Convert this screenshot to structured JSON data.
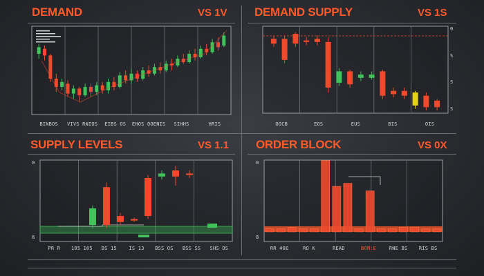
{
  "colors": {
    "accent": "#ff5a2a",
    "red": "#f04a2c",
    "green": "#3fc35a",
    "yellow": "#e4d21c",
    "grid": "#6f737a",
    "frame": "#9a9da3"
  },
  "chart_data": [
    {
      "type": "candlestick",
      "title": "DEMAND",
      "subtitle": "VS 1V",
      "tick_labels": [
        "BINBOS",
        "VIVS RNIOS",
        "EIBS OS",
        "EHOS OOENIS",
        "SIHHS",
        "HRIS"
      ],
      "candles": [
        {
          "o": 70,
          "c": 78,
          "h": 82,
          "l": 64,
          "dir": "up"
        },
        {
          "o": 76,
          "c": 68,
          "h": 80,
          "l": 62,
          "dir": "down"
        },
        {
          "o": 68,
          "c": 40,
          "h": 70,
          "l": 36,
          "dir": "down"
        },
        {
          "o": 40,
          "c": 30,
          "h": 46,
          "l": 24,
          "dir": "down"
        },
        {
          "o": 30,
          "c": 36,
          "h": 40,
          "l": 26,
          "dir": "up"
        },
        {
          "o": 34,
          "c": 22,
          "h": 38,
          "l": 18,
          "dir": "down"
        },
        {
          "o": 22,
          "c": 28,
          "h": 32,
          "l": 16,
          "dir": "up"
        },
        {
          "o": 28,
          "c": 20,
          "h": 30,
          "l": 12,
          "dir": "down"
        },
        {
          "o": 20,
          "c": 30,
          "h": 34,
          "l": 18,
          "dir": "up"
        },
        {
          "o": 30,
          "c": 24,
          "h": 34,
          "l": 18,
          "dir": "down"
        },
        {
          "o": 24,
          "c": 32,
          "h": 36,
          "l": 20,
          "dir": "up"
        },
        {
          "o": 32,
          "c": 26,
          "h": 36,
          "l": 22,
          "dir": "down"
        },
        {
          "o": 26,
          "c": 36,
          "h": 40,
          "l": 22,
          "dir": "up"
        },
        {
          "o": 36,
          "c": 30,
          "h": 42,
          "l": 26,
          "dir": "down"
        },
        {
          "o": 30,
          "c": 44,
          "h": 48,
          "l": 28,
          "dir": "up"
        },
        {
          "o": 44,
          "c": 38,
          "h": 50,
          "l": 34,
          "dir": "down"
        },
        {
          "o": 38,
          "c": 46,
          "h": 52,
          "l": 34,
          "dir": "up"
        },
        {
          "o": 46,
          "c": 40,
          "h": 50,
          "l": 36,
          "dir": "down"
        },
        {
          "o": 40,
          "c": 50,
          "h": 54,
          "l": 38,
          "dir": "up"
        },
        {
          "o": 50,
          "c": 46,
          "h": 56,
          "l": 42,
          "dir": "down"
        },
        {
          "o": 46,
          "c": 54,
          "h": 58,
          "l": 44,
          "dir": "up"
        },
        {
          "o": 54,
          "c": 50,
          "h": 60,
          "l": 46,
          "dir": "down"
        },
        {
          "o": 50,
          "c": 58,
          "h": 62,
          "l": 48,
          "dir": "up"
        },
        {
          "o": 58,
          "c": 56,
          "h": 64,
          "l": 50,
          "dir": "down"
        },
        {
          "o": 56,
          "c": 64,
          "h": 68,
          "l": 54,
          "dir": "up"
        },
        {
          "o": 64,
          "c": 60,
          "h": 70,
          "l": 58,
          "dir": "down"
        },
        {
          "o": 60,
          "c": 70,
          "h": 74,
          "l": 58,
          "dir": "up"
        },
        {
          "o": 70,
          "c": 66,
          "h": 76,
          "l": 62,
          "dir": "down"
        },
        {
          "o": 66,
          "c": 76,
          "h": 80,
          "l": 64,
          "dir": "up"
        },
        {
          "o": 76,
          "c": 72,
          "h": 82,
          "l": 68,
          "dir": "down"
        },
        {
          "o": 72,
          "c": 84,
          "h": 88,
          "l": 70,
          "dir": "up"
        },
        {
          "o": 84,
          "c": 78,
          "h": 90,
          "l": 74,
          "dir": "down"
        },
        {
          "o": 80,
          "c": 92,
          "h": 96,
          "l": 78,
          "dir": "up"
        }
      ],
      "grid": true
    },
    {
      "type": "candlestick",
      "title": "DEMAND SUPPLY",
      "subtitle": "VS 1S",
      "tick_labels": [
        "OOCB",
        "EOS",
        "EUS",
        "BIS",
        "OIS"
      ],
      "y_tick_labels": [
        "0",
        "S",
        "S",
        "S"
      ],
      "candles": [
        {
          "o": 88,
          "c": 82,
          "h": 92,
          "l": 78,
          "dir": "down"
        },
        {
          "o": 88,
          "c": 62,
          "h": 92,
          "l": 58,
          "dir": "down"
        },
        {
          "o": 94,
          "c": 82,
          "h": 96,
          "l": 78,
          "dir": "down"
        },
        {
          "o": 86,
          "c": 84,
          "h": 90,
          "l": 80,
          "dir": "down"
        },
        {
          "o": 88,
          "c": 84,
          "h": 92,
          "l": 80,
          "dir": "down"
        },
        {
          "o": 84,
          "c": 28,
          "h": 90,
          "l": 22,
          "dir": "down"
        },
        {
          "o": 34,
          "c": 48,
          "h": 52,
          "l": 30,
          "dir": "up"
        },
        {
          "o": 48,
          "c": 32,
          "h": 50,
          "l": 28,
          "dir": "down"
        },
        {
          "o": 44,
          "c": 40,
          "h": 48,
          "l": 36,
          "dir": "up"
        },
        {
          "o": 44,
          "c": 40,
          "h": 48,
          "l": 38,
          "dir": "up"
        },
        {
          "o": 48,
          "c": 18,
          "h": 50,
          "l": 14,
          "dir": "down"
        },
        {
          "o": 24,
          "c": 20,
          "h": 28,
          "l": 16,
          "dir": "down"
        },
        {
          "o": 24,
          "c": 18,
          "h": 28,
          "l": 14,
          "dir": "down"
        },
        {
          "o": 22,
          "c": 6,
          "h": 24,
          "l": 2,
          "dir": "yellow"
        },
        {
          "o": 18,
          "c": 4,
          "h": 22,
          "l": 0,
          "dir": "down"
        },
        {
          "o": 12,
          "c": 4,
          "h": 14,
          "l": 0,
          "dir": "down"
        }
      ],
      "grid": true
    },
    {
      "type": "candlestick",
      "title": "SUPPLY LEVELS",
      "subtitle": "VS 1.1",
      "tick_labels": [
        "PR R",
        "105 105",
        "BS 15",
        "IS 13",
        "BSS OS",
        "BSS SS",
        "SHS OS"
      ],
      "y_tick_labels": [
        "0",
        "8"
      ],
      "candles": [
        {
          "o": 18,
          "c": 40,
          "h": 44,
          "l": 14,
          "dir": "up"
        },
        {
          "o": 68,
          "c": 18,
          "h": 74,
          "l": 14,
          "dir": "down"
        },
        {
          "o": 30,
          "c": 22,
          "h": 34,
          "l": 18,
          "dir": "down"
        },
        {
          "o": 26,
          "c": 24,
          "h": 28,
          "l": 22,
          "dir": "down"
        },
        {
          "o": 80,
          "c": 30,
          "h": 84,
          "l": 26,
          "dir": "down"
        },
        {
          "o": 82,
          "c": 86,
          "h": 90,
          "l": 78,
          "dir": "up"
        },
        {
          "o": 90,
          "c": 82,
          "h": 96,
          "l": 70,
          "dir": "down"
        },
        {
          "o": 86,
          "c": 84,
          "h": 90,
          "l": 80,
          "dir": "down"
        }
      ],
      "grid": true
    },
    {
      "type": "bar",
      "title": "ORDER BLOCK",
      "subtitle": "VS 0X",
      "tick_labels": [
        "RR 40E",
        "RO K",
        "READ",
        "BOM:E",
        "RNE BS",
        "RIS BS"
      ],
      "y_tick_labels": [
        "0",
        "8"
      ],
      "values": [
        4,
        4,
        6,
        4,
        4,
        94,
        60,
        64,
        4,
        54,
        4,
        4,
        6,
        6,
        4,
        4
      ],
      "ylim": [
        0,
        100
      ],
      "grid": true
    }
  ]
}
